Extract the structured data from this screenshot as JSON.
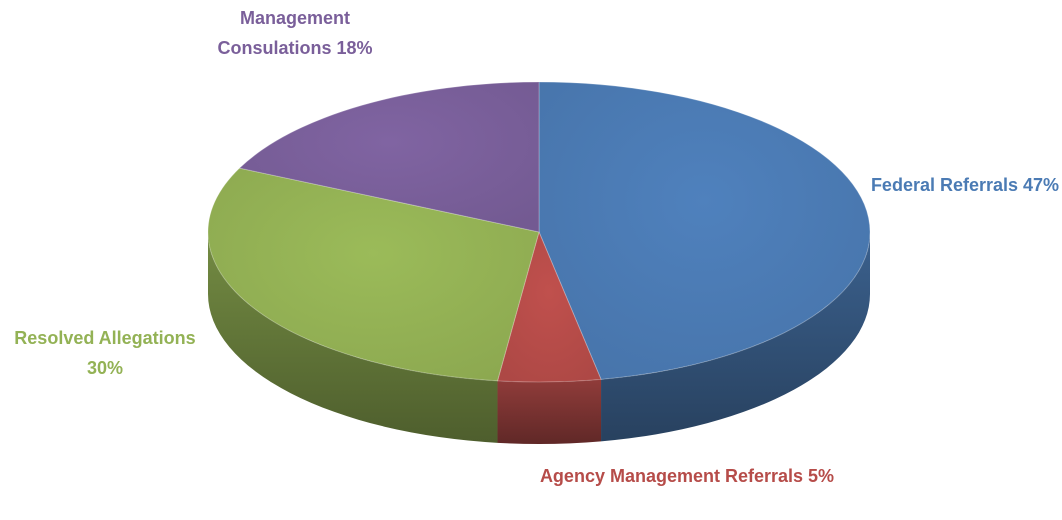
{
  "chart_data": {
    "type": "pie",
    "categories": [
      "Federal Referrals",
      "Agency Management Referrals",
      "Resolved Allegations",
      "Management Consulations"
    ],
    "values": [
      47,
      5,
      30,
      18
    ],
    "value_labels": [
      "47%",
      "5%",
      "30%",
      "18%"
    ],
    "colors": [
      "#4f81bd",
      "#c0504d",
      "#9bbb59",
      "#8064a2"
    ]
  }
}
